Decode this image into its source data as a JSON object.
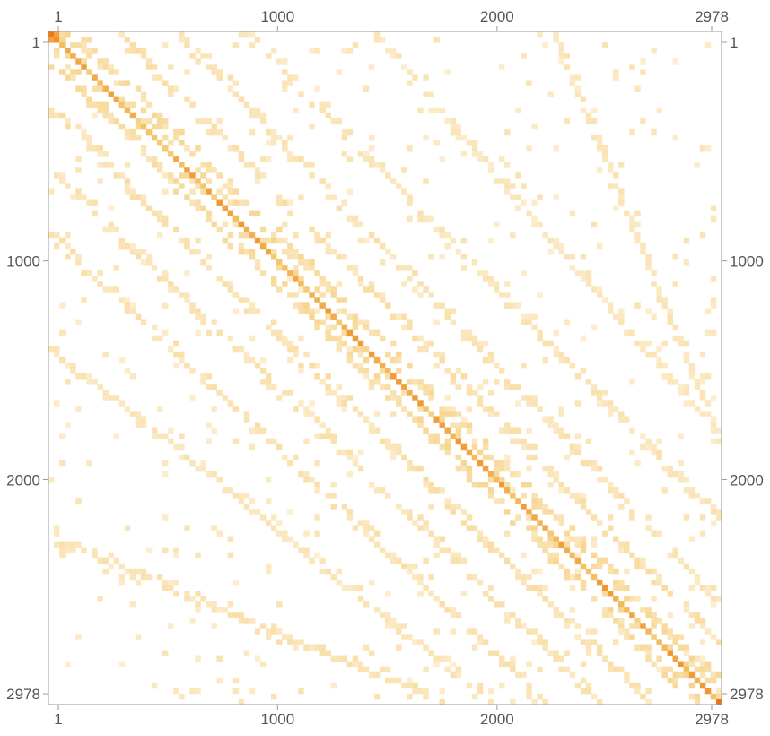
{
  "chart_data": {
    "type": "heatmap",
    "title": "",
    "xlabel": "",
    "ylabel": "",
    "matrix_size": 2978,
    "xlim": [
      1,
      2978
    ],
    "ylim": [
      1,
      2978
    ],
    "tick_values": [
      1,
      1000,
      2000,
      2978
    ],
    "tick_labels": [
      "1",
      "1000",
      "2000",
      "2978"
    ],
    "axes_labeled": [
      "top",
      "bottom",
      "left",
      "right"
    ],
    "grid": false,
    "legend": "none",
    "colormap": {
      "low": "#fdf3dc",
      "mid": "#f4c568",
      "high": "#ec6f05"
    },
    "diagonal_bands": [
      {
        "name": "main",
        "start_row": 1,
        "start_col": 1,
        "end_row": 2978,
        "end_col": 2978,
        "intensity": 0.55
      },
      {
        "name": "upper-1",
        "start_row": 1,
        "start_col": 130,
        "end_row": 2880,
        "end_col": 2978,
        "intensity": 0.22
      },
      {
        "name": "upper-2",
        "start_row": 1,
        "start_col": 330,
        "end_row": 2700,
        "end_col": 2978,
        "intensity": 0.18
      },
      {
        "name": "upper-3",
        "start_row": 1,
        "start_col": 600,
        "end_row": 2520,
        "end_col": 2978,
        "intensity": 0.16
      },
      {
        "name": "upper-4",
        "start_row": 1,
        "start_col": 900,
        "end_row": 2150,
        "end_col": 2978,
        "intensity": 0.14
      },
      {
        "name": "upper-5",
        "start_row": 1,
        "start_col": 1450,
        "end_row": 1700,
        "end_col": 2900,
        "intensity": 0.12
      },
      {
        "name": "upper-6",
        "start_row": 1,
        "start_col": 2250,
        "end_row": 1800,
        "end_col": 2978,
        "intensity": 0.13
      },
      {
        "name": "lower-1",
        "start_row": 130,
        "start_col": 1,
        "end_row": 2978,
        "end_col": 2880,
        "intensity": 0.22
      },
      {
        "name": "lower-2",
        "start_row": 350,
        "start_col": 1,
        "end_row": 2978,
        "end_col": 2650,
        "intensity": 0.18
      },
      {
        "name": "lower-3",
        "start_row": 620,
        "start_col": 1,
        "end_row": 2978,
        "end_col": 2450,
        "intensity": 0.16
      },
      {
        "name": "lower-4",
        "start_row": 900,
        "start_col": 1,
        "end_row": 2978,
        "end_col": 2200,
        "intensity": 0.17
      },
      {
        "name": "lower-5",
        "start_row": 1400,
        "start_col": 1,
        "end_row": 2978,
        "end_col": 1950,
        "intensity": 0.14
      },
      {
        "name": "lower-6",
        "start_row": 2250,
        "start_col": 1,
        "end_row": 2978,
        "end_col": 1750,
        "intensity": 0.16
      }
    ]
  }
}
